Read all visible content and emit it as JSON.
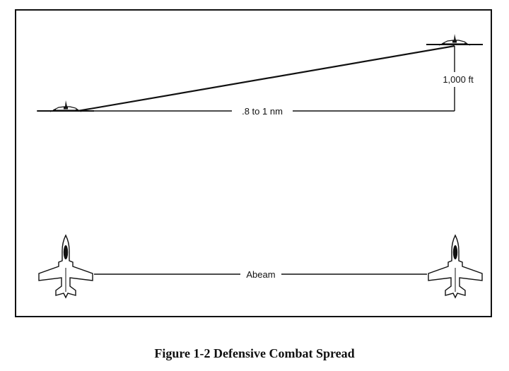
{
  "labels": {
    "distance": ".8 to 1 nm",
    "altitude": "1,000 ft",
    "abeam": "Abeam"
  },
  "caption": "Figure 1-2 Defensive Combat Spread",
  "colors": {
    "line": "#111111",
    "background": "#ffffff"
  }
}
